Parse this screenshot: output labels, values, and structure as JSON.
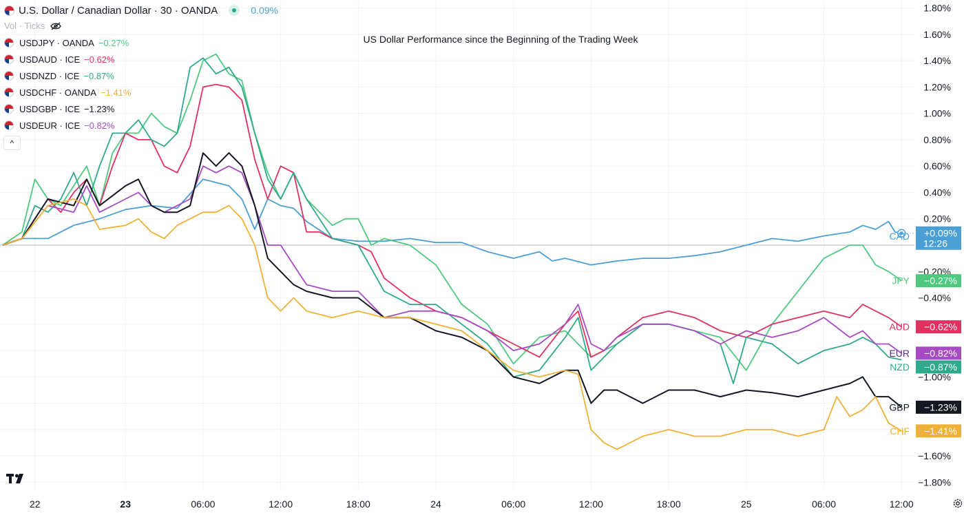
{
  "header": {
    "symbol_title": "U.S. Dollar / Canadian Dollar · 30 · OANDA",
    "change": "0.09%",
    "change_color": "#4b9fd4",
    "vol_label": "Vol · Ticks"
  },
  "legend": [
    {
      "label": "USDJPY · OANDA",
      "value": "−0.27%",
      "color": "#4ec97e"
    },
    {
      "label": "USDAUD · ICE",
      "value": "−0.62%",
      "color": "#e0315f"
    },
    {
      "label": "USDNZD · ICE",
      "value": "−0.87%",
      "color": "#2fa98c"
    },
    {
      "label": "USDCHF · OANDA",
      "value": "−1.41%",
      "color": "#f0b236"
    },
    {
      "label": "USDGBP · ICE",
      "value": "−1.23%",
      "color": "#131722"
    },
    {
      "label": "USDEUR · ICE",
      "value": "−0.82%",
      "color": "#a64bc2"
    }
  ],
  "collapse_label": "^",
  "chart_data": {
    "type": "line",
    "title": "US Dollar Performance since the Beginning of the Trading Week",
    "y_unit": "%",
    "ylim": [
      -1.85,
      1.85
    ],
    "y_ticks": [
      "1.80%",
      "1.60%",
      "1.40%",
      "1.20%",
      "1.00%",
      "0.80%",
      "0.60%",
      "0.40%",
      "0.20%",
      "−0.20%",
      "−0.40%",
      "−1.00%",
      "−1.60%",
      "−1.80%"
    ],
    "y_tick_values": [
      1.8,
      1.6,
      1.4,
      1.2,
      1.0,
      0.8,
      0.6,
      0.4,
      0.2,
      -0.2,
      -0.4,
      -1.0,
      -1.6,
      -1.8
    ],
    "x_ticks": [
      "22",
      "23",
      "06:00",
      "12:00",
      "18:00",
      "24",
      "06:00",
      "12:00",
      "18:00",
      "25",
      "06:00",
      "12:00"
    ],
    "x_tick_hours": [
      -7,
      0,
      6,
      12,
      18,
      24,
      30,
      36,
      42,
      48,
      54,
      60
    ],
    "x_tick_bold": [
      false,
      true,
      false,
      false,
      false,
      false,
      false,
      false,
      false,
      false,
      false,
      false
    ],
    "x_range_hours": [
      -9.7,
      61.0
    ],
    "zero_line": true,
    "series": [
      {
        "name": "USDCAD",
        "tag": "CAD",
        "last_label": "+0.09%",
        "countdown": "12:26",
        "color": "#4b9fd4",
        "label_text_color": "#4b9fd4",
        "x": [
          -9.5,
          -8,
          -6,
          -4,
          -2,
          0,
          2,
          4,
          6,
          8,
          9,
          10,
          11,
          12,
          13,
          14,
          16,
          18,
          20,
          22,
          24,
          26,
          28,
          30,
          32,
          33,
          34,
          36,
          38,
          40,
          42,
          44,
          46,
          48,
          50,
          52,
          54,
          56,
          57,
          58,
          59,
          59.5,
          60
        ],
        "y": [
          0,
          0.05,
          0.05,
          0.15,
          0.2,
          0.27,
          0.3,
          0.28,
          0.5,
          0.45,
          0.35,
          0.12,
          0.35,
          0.3,
          0.28,
          0.18,
          0.05,
          0.03,
          0.03,
          0.05,
          0.02,
          0.02,
          -0.05,
          -0.1,
          -0.05,
          -0.12,
          -0.1,
          -0.15,
          -0.12,
          -0.1,
          -0.1,
          -0.08,
          -0.05,
          0,
          0.05,
          0.03,
          0.07,
          0.1,
          0.15,
          0.12,
          0.18,
          0.1,
          0.09
        ]
      },
      {
        "name": "USDJPY",
        "tag": "JPY",
        "last_label": "−0.27%",
        "color": "#4ec97e",
        "label_text_color": "#4ec97e",
        "x": [
          -9.5,
          -8,
          -7,
          -6,
          -5,
          -4,
          -3,
          -2,
          -1,
          0,
          1,
          2,
          3,
          4,
          5,
          6,
          7,
          8,
          9,
          10,
          11,
          12,
          13,
          14,
          16,
          17,
          18,
          19,
          20,
          22,
          24,
          26,
          28,
          30,
          32,
          34,
          36,
          38,
          40,
          42,
          44,
          46,
          48,
          50,
          52,
          54,
          56,
          57,
          58,
          59,
          60
        ],
        "y": [
          0,
          0.1,
          0.5,
          0.35,
          0.3,
          0.45,
          0.6,
          0.3,
          0.7,
          0.85,
          0.85,
          1.0,
          0.9,
          0.85,
          1.1,
          1.4,
          1.45,
          1.3,
          1.25,
          0.85,
          0.55,
          0.35,
          0.55,
          0.35,
          0.15,
          0.2,
          0.2,
          0.0,
          0.05,
          0.0,
          -0.15,
          -0.45,
          -0.6,
          -0.9,
          -0.7,
          -0.65,
          -0.85,
          -0.75,
          -0.6,
          -0.6,
          -0.65,
          -0.7,
          -0.95,
          -0.6,
          -0.35,
          -0.1,
          0.0,
          0.0,
          -0.15,
          -0.2,
          -0.27
        ]
      },
      {
        "name": "USDAUD",
        "tag": "AUD",
        "last_label": "−0.62%",
        "color": "#e0315f",
        "label_text_color": "#e0315f",
        "x": [
          -9.5,
          -8,
          -6,
          -5,
          -4,
          -3,
          -2,
          -1,
          0,
          1,
          2,
          3,
          4,
          5,
          6,
          7,
          8,
          9,
          10,
          11,
          12,
          13,
          14,
          15,
          16,
          18,
          19,
          20,
          22,
          24,
          26,
          28,
          30,
          32,
          34,
          35,
          36,
          37,
          38,
          40,
          42,
          44,
          46,
          48,
          50,
          52,
          54,
          56,
          57,
          58,
          59,
          60
        ],
        "y": [
          0,
          0.05,
          0.35,
          0.25,
          0.4,
          0.5,
          0.3,
          0.6,
          0.85,
          0.8,
          0.8,
          0.6,
          0.55,
          0.75,
          1.2,
          1.22,
          1.2,
          1.1,
          0.65,
          0.35,
          0.6,
          0.55,
          0.1,
          0.1,
          0.05,
          0,
          -0.05,
          -0.25,
          -0.4,
          -0.5,
          -0.55,
          -0.65,
          -0.75,
          -0.85,
          -0.6,
          -0.5,
          -0.85,
          -0.8,
          -0.7,
          -0.55,
          -0.5,
          -0.55,
          -0.65,
          -0.7,
          -0.6,
          -0.55,
          -0.5,
          -0.55,
          -0.45,
          -0.5,
          -0.55,
          -0.62
        ]
      },
      {
        "name": "USDNZD",
        "tag": "NZD",
        "last_label": "−0.87%",
        "color": "#2fa98c",
        "label_text_color": "#2fa98c",
        "x": [
          -9.5,
          -8,
          -7,
          -6,
          -5,
          -4,
          -3,
          -2,
          -1,
          0,
          1,
          2,
          3,
          4,
          5,
          6,
          7,
          8,
          9,
          10,
          11,
          12,
          13,
          14,
          16,
          18,
          20,
          22,
          24,
          26,
          28,
          30,
          32,
          34,
          35,
          36,
          37,
          38,
          40,
          42,
          44,
          46,
          47,
          48,
          50,
          52,
          54,
          56,
          57,
          58,
          59,
          60
        ],
        "y": [
          0,
          0.05,
          0.3,
          0.25,
          0.35,
          0.55,
          0.3,
          0.6,
          0.85,
          0.85,
          0.95,
          0.8,
          0.75,
          0.85,
          1.35,
          1.42,
          1.3,
          1.35,
          1.2,
          0.85,
          0.5,
          0.35,
          0.55,
          0.35,
          0.05,
          0,
          -0.35,
          -0.45,
          -0.45,
          -0.6,
          -0.75,
          -1.0,
          -0.95,
          -0.7,
          -0.55,
          -0.95,
          -0.85,
          -0.75,
          -0.6,
          -0.6,
          -0.65,
          -0.75,
          -1.05,
          -0.7,
          -0.75,
          -0.9,
          -0.8,
          -0.75,
          -0.7,
          -0.75,
          -0.85,
          -0.87
        ]
      },
      {
        "name": "USDEUR",
        "tag": "EUR",
        "last_label": "−0.82%",
        "color": "#a64bc2",
        "label_text_color": "#5a2d91",
        "x": [
          -9.5,
          -8,
          -6,
          -4,
          -3,
          -2,
          0,
          1,
          2,
          3,
          4,
          5,
          6,
          7,
          8,
          9,
          10,
          11,
          12,
          13,
          14,
          16,
          18,
          20,
          22,
          24,
          26,
          28,
          30,
          32,
          34,
          35,
          36,
          37,
          38,
          40,
          42,
          44,
          46,
          48,
          50,
          52,
          54,
          56,
          57,
          58,
          59,
          60
        ],
        "y": [
          0,
          0.05,
          0.3,
          0.25,
          0.45,
          0.25,
          0.35,
          0.4,
          0.3,
          0.25,
          0.3,
          0.35,
          0.6,
          0.55,
          0.6,
          0.55,
          0.3,
          0.0,
          0.0,
          -0.15,
          -0.3,
          -0.35,
          -0.35,
          -0.55,
          -0.5,
          -0.5,
          -0.55,
          -0.65,
          -0.8,
          -0.75,
          -0.6,
          -0.45,
          -0.75,
          -0.8,
          -0.7,
          -0.6,
          -0.6,
          -0.65,
          -0.75,
          -0.65,
          -0.7,
          -0.65,
          -0.55,
          -0.7,
          -0.65,
          -0.75,
          -0.75,
          -0.82
        ]
      },
      {
        "name": "USDGBP",
        "tag": "GBP",
        "last_label": "−1.23%",
        "color": "#131722",
        "label_text_color": "#131722",
        "x": [
          -9.5,
          -8,
          -6,
          -4,
          -3,
          -2,
          0,
          1,
          2,
          3,
          4,
          5,
          6,
          7,
          8,
          9,
          10,
          11,
          12,
          13,
          14,
          16,
          18,
          20,
          22,
          24,
          26,
          28,
          30,
          32,
          34,
          35,
          36,
          37,
          38,
          40,
          42,
          44,
          46,
          48,
          50,
          52,
          54,
          56,
          57,
          58,
          59,
          60
        ],
        "y": [
          0,
          0.05,
          0.35,
          0.3,
          0.5,
          0.3,
          0.45,
          0.5,
          0.3,
          0.25,
          0.25,
          0.3,
          0.7,
          0.6,
          0.7,
          0.6,
          0.3,
          -0.1,
          -0.2,
          -0.3,
          -0.35,
          -0.4,
          -0.4,
          -0.55,
          -0.55,
          -0.65,
          -0.7,
          -0.8,
          -1.0,
          -1.05,
          -0.95,
          -0.95,
          -1.2,
          -1.1,
          -1.1,
          -1.2,
          -1.1,
          -1.1,
          -1.15,
          -1.1,
          -1.12,
          -1.15,
          -1.1,
          -1.05,
          -1.0,
          -1.15,
          -1.15,
          -1.23
        ]
      },
      {
        "name": "USDCHF",
        "tag": "CHF",
        "last_label": "−1.41%",
        "color": "#f0b236",
        "label_text_color": "#f0b236",
        "x": [
          -9.5,
          -8,
          -6,
          -4,
          -3,
          -2,
          0,
          1,
          2,
          3,
          4,
          5,
          6,
          7,
          8,
          9,
          10,
          11,
          12,
          13,
          14,
          16,
          18,
          20,
          22,
          24,
          26,
          28,
          30,
          32,
          34,
          35,
          36,
          37,
          38,
          40,
          42,
          44,
          46,
          48,
          50,
          52,
          54,
          55,
          56,
          57,
          58,
          59,
          60
        ],
        "y": [
          0,
          0.05,
          0.3,
          0.35,
          0.3,
          0.12,
          0.15,
          0.2,
          0.1,
          0.05,
          0.15,
          0.2,
          0.25,
          0.25,
          0.3,
          0.2,
          0.0,
          -0.4,
          -0.5,
          -0.4,
          -0.5,
          -0.55,
          -0.5,
          -0.55,
          -0.55,
          -0.6,
          -0.65,
          -0.8,
          -0.95,
          -1.0,
          -0.95,
          -0.98,
          -1.4,
          -1.5,
          -1.55,
          -1.45,
          -1.4,
          -1.45,
          -1.45,
          -1.4,
          -1.4,
          -1.45,
          -1.4,
          -1.15,
          -1.3,
          -1.25,
          -1.15,
          -1.35,
          -1.41
        ]
      }
    ]
  }
}
